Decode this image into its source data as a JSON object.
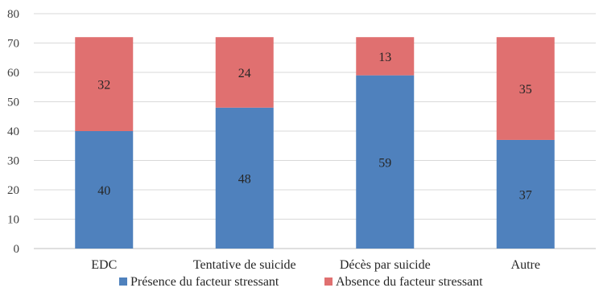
{
  "chart_data": {
    "type": "bar",
    "stacked": true,
    "categories": [
      "EDC",
      "Tentative de suicide",
      "Décès par suicide",
      "Autre"
    ],
    "series": [
      {
        "name": "Présence du facteur stressant",
        "values": [
          40,
          48,
          59,
          37
        ],
        "color": "#4f81bd"
      },
      {
        "name": "Absence du facteur stressant",
        "values": [
          32,
          24,
          13,
          35
        ],
        "color": "#e07070"
      }
    ],
    "ylim": [
      0,
      80
    ],
    "yticks": [
      0,
      10,
      20,
      30,
      40,
      50,
      60,
      70,
      80
    ],
    "grid": true,
    "legend": "bottom",
    "title": "",
    "xlabel": "",
    "ylabel": ""
  }
}
